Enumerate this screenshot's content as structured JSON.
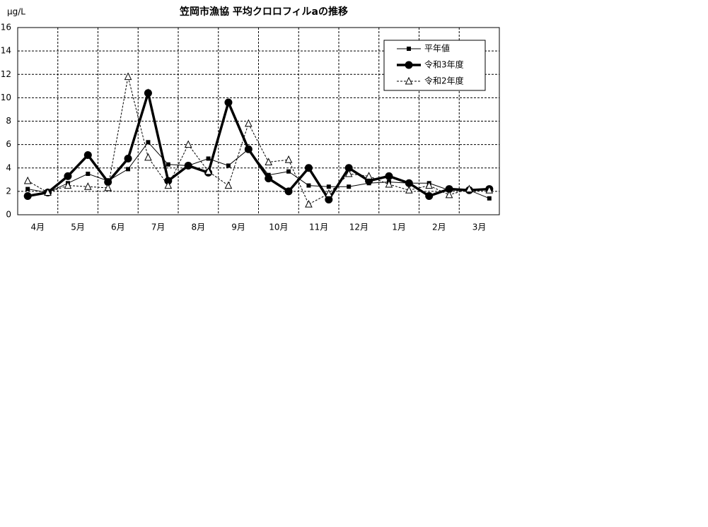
{
  "chart_data": {
    "type": "line",
    "title": "笠岡市漁協  平均クロロフィルaの推移",
    "y_label": "μg/L",
    "categories": [
      "4月",
      null,
      "5月",
      null,
      "6月",
      null,
      "7月",
      null,
      "8月",
      null,
      "9月",
      null,
      "10月",
      null,
      "11月",
      null,
      "12月",
      null,
      "1月",
      null,
      "2月",
      null,
      "3月",
      null
    ],
    "series": [
      {
        "name": "平年値",
        "color": "#000000",
        "marker": "square",
        "line_width": 1,
        "dashed": false,
        "values": [
          2.2,
          1.9,
          2.7,
          3.5,
          2.9,
          3.9,
          6.2,
          4.3,
          4.2,
          4.8,
          4.2,
          5.6,
          3.4,
          3.7,
          2.5,
          2.4,
          2.4,
          2.7,
          2.8,
          2.7,
          2.7,
          2.1,
          2.1,
          1.4
        ]
      },
      {
        "name": "令和3年度",
        "color": "#000000",
        "marker": "circle",
        "line_width": 3.5,
        "dashed": false,
        "values": [
          1.6,
          1.9,
          3.3,
          5.1,
          2.8,
          4.8,
          10.4,
          2.9,
          4.2,
          3.6,
          9.6,
          5.6,
          3.1,
          2.0,
          4.0,
          1.3,
          4.0,
          2.9,
          3.3,
          2.7,
          1.6,
          2.2,
          2.1,
          2.2
        ]
      },
      {
        "name": "令和2年度",
        "color": "#000000",
        "marker": "triangle",
        "line_width": 1,
        "dashed": true,
        "values": [
          2.9,
          1.9,
          2.5,
          2.4,
          2.3,
          11.8,
          4.9,
          2.5,
          6.0,
          3.7,
          2.5,
          7.8,
          4.5,
          4.7,
          0.9,
          1.8,
          3.5,
          3.3,
          2.6,
          2.1,
          2.5,
          1.7,
          2.2,
          2.1
        ]
      }
    ],
    "ylim": [
      0,
      16
    ],
    "yticks": [
      0,
      2,
      4,
      6,
      8,
      10,
      12,
      14,
      16
    ],
    "grid": true,
    "legend": "upper right"
  }
}
